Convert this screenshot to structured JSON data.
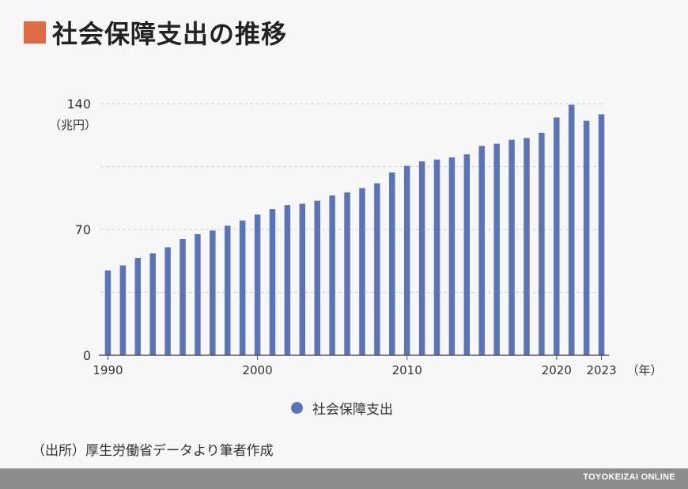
{
  "title": "社会保障支出の推移",
  "colors": {
    "accent": "#e06a43",
    "bar": "#5b74b8",
    "grid": "#cfcfcf",
    "footer": "#8c8c8c"
  },
  "chart_data": {
    "type": "bar",
    "ylabel": "（兆円）",
    "xlabel": "（年）",
    "ylim": [
      0,
      140
    ],
    "yticks": [
      0,
      70,
      140
    ],
    "xticks": [
      1990,
      2000,
      2010,
      2020,
      2023
    ],
    "grid": true,
    "legend_position": "bottom",
    "categories": [
      1990,
      1991,
      1992,
      1993,
      1994,
      1995,
      1996,
      1997,
      1998,
      1999,
      2000,
      2001,
      2002,
      2003,
      2004,
      2005,
      2006,
      2007,
      2008,
      2009,
      2010,
      2011,
      2012,
      2013,
      2014,
      2015,
      2016,
      2017,
      2018,
      2019,
      2020,
      2021,
      2022,
      2023
    ],
    "series": [
      {
        "name": "社会保障支出",
        "values": [
          47.2,
          50.0,
          54.1,
          56.7,
          60.1,
          64.7,
          67.4,
          69.4,
          72.1,
          75.0,
          78.3,
          81.4,
          83.6,
          84.3,
          86.0,
          88.9,
          90.6,
          93.0,
          95.7,
          101.7,
          105.4,
          107.9,
          108.9,
          110.1,
          111.8,
          116.5,
          117.7,
          119.9,
          120.9,
          123.8,
          132.3,
          139.4,
          130.5,
          134.1
        ]
      }
    ]
  },
  "source": "（出所）厚生労働省データより筆者作成",
  "brand": "TOYOKEIZAI ONLINE"
}
